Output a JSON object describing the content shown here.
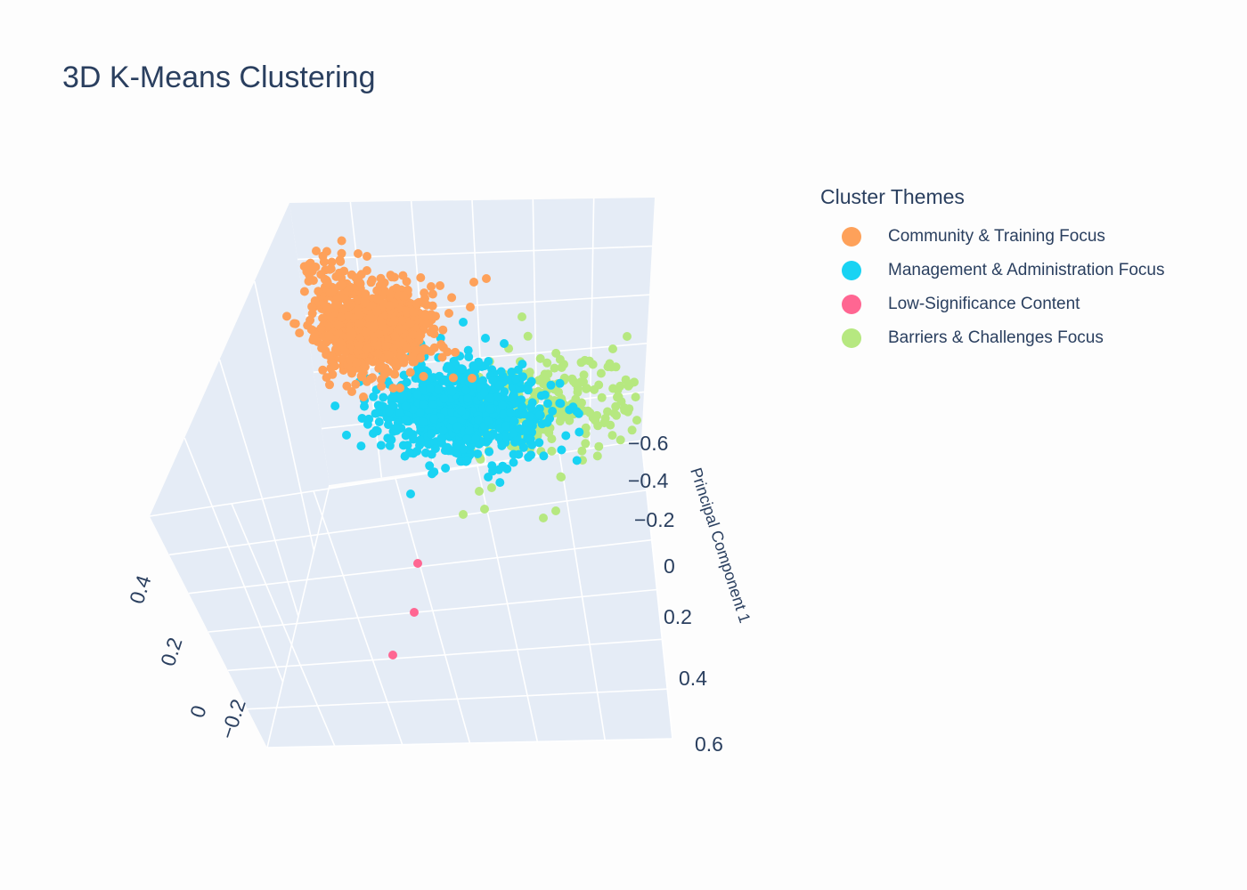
{
  "chart_data": {
    "type": "scatter",
    "title": "3D K-Means Clustering",
    "legend_title": "Cluster Themes",
    "legend_position": "top-right",
    "axes": {
      "right_axis": {
        "label": "Principal Component 1",
        "ticks": [
          "−0.6",
          "−0.4",
          "−0.2",
          "0",
          "0.2",
          "0.4",
          "0.6"
        ]
      },
      "left_axis": {
        "label": "",
        "ticks": [
          "0.4",
          "0.2",
          "0",
          "−0.2"
        ]
      }
    },
    "grid": true,
    "background_color": "#e5ecf6",
    "series": [
      {
        "name": "Community & Training Focus",
        "color": "#fea15a",
        "summary": "dense cluster at upper-left of cube",
        "points": []
      },
      {
        "name": "Management & Administration Focus",
        "color": "#19d3f3",
        "summary": "dense cluster at center of cube",
        "points": []
      },
      {
        "name": "Low-Significance Content",
        "color": "#ff6692",
        "summary": "three outlier points below main clusters",
        "points": []
      },
      {
        "name": "Barriers & Challenges Focus",
        "color": "#b6e880",
        "summary": "sparser cluster to the right of center",
        "points": []
      }
    ]
  }
}
